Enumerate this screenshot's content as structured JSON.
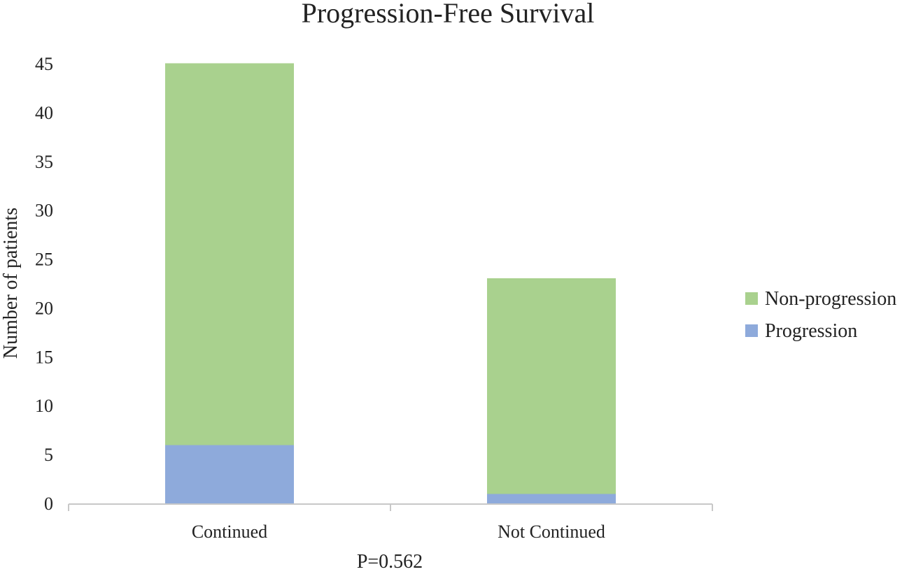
{
  "chart_data": {
    "type": "bar",
    "stacked": true,
    "title": "Progression-Free Survival",
    "xlabel": "",
    "ylabel": "Number of patients",
    "categories": [
      "Continued",
      "Not Continued"
    ],
    "series": [
      {
        "name": "Progression",
        "values": [
          6,
          1
        ],
        "color": "#8eaadb"
      },
      {
        "name": "Non-progression",
        "values": [
          39,
          22
        ],
        "color": "#a9d18e"
      }
    ],
    "ylim": [
      0,
      45
    ],
    "yticks": [
      0,
      5,
      10,
      15,
      20,
      25,
      30,
      35,
      40,
      45
    ],
    "grid": false,
    "legend": {
      "position": "right",
      "entries": [
        "Non-progression",
        "Progression"
      ]
    },
    "annotation": "P=0.562"
  }
}
